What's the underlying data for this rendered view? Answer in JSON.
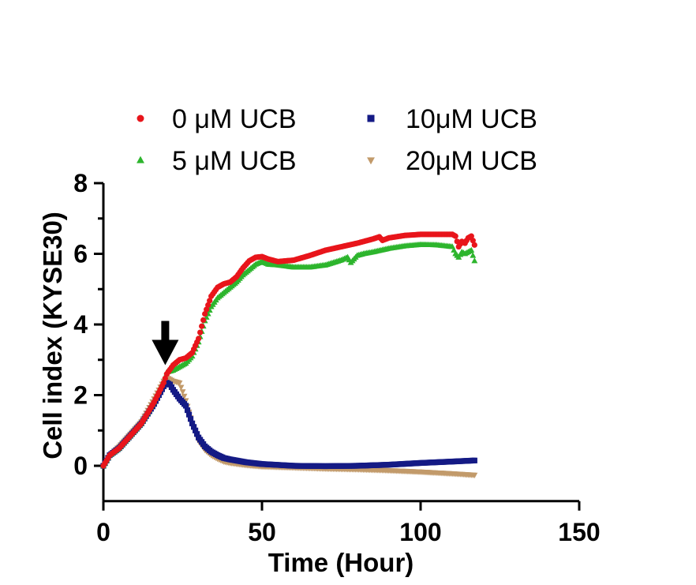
{
  "chart_data": {
    "type": "scatter",
    "title": "",
    "xlabel": "Time (Hour)",
    "ylabel": "Cell index (KYSE30)",
    "xlim": [
      0,
      150
    ],
    "ylim": [
      -1,
      8
    ],
    "x_ticks": [
      0,
      50,
      100,
      150
    ],
    "y_ticks": [
      0,
      2,
      4,
      6,
      8
    ],
    "grid": false,
    "legend_position": "top",
    "annotation": {
      "type": "arrow",
      "x": 19.5,
      "y_tip": 2.85,
      "y_tail": 4.1
    },
    "series": [
      {
        "name": "0 μM UCB",
        "color": "#e8151b",
        "marker": "circle",
        "x": [
          0,
          2,
          5,
          8,
          12,
          16,
          19,
          20,
          22,
          24,
          26,
          28,
          30,
          32,
          34,
          36,
          38,
          40,
          42,
          44,
          46,
          48,
          50,
          52,
          55,
          60,
          65,
          70,
          75,
          80,
          85,
          87,
          88,
          90,
          95,
          100,
          105,
          110,
          111,
          112,
          113,
          114,
          115,
          116,
          117
        ],
        "y": [
          0,
          0.3,
          0.5,
          0.8,
          1.2,
          1.8,
          2.35,
          2.6,
          2.85,
          3.0,
          3.05,
          3.2,
          3.6,
          4.3,
          4.8,
          5.05,
          5.15,
          5.2,
          5.35,
          5.6,
          5.8,
          5.9,
          5.92,
          5.85,
          5.78,
          5.82,
          5.95,
          6.1,
          6.2,
          6.3,
          6.42,
          6.48,
          6.38,
          6.45,
          6.52,
          6.55,
          6.55,
          6.55,
          6.5,
          6.2,
          6.35,
          6.3,
          6.45,
          6.5,
          6.25
        ]
      },
      {
        "name": "5 μM UCB",
        "color": "#2db52d",
        "marker": "triangle-up",
        "x": [
          0,
          2,
          5,
          8,
          12,
          16,
          19,
          20,
          22,
          24,
          26,
          28,
          30,
          32,
          34,
          36,
          38,
          40,
          42,
          44,
          46,
          48,
          50,
          52,
          55,
          60,
          65,
          70,
          75,
          77,
          78,
          80,
          82,
          85,
          90,
          95,
          100,
          105,
          110,
          111,
          112,
          113,
          114,
          115,
          116,
          117
        ],
        "y": [
          0,
          0.3,
          0.5,
          0.8,
          1.2,
          1.8,
          2.4,
          2.65,
          2.7,
          2.8,
          2.9,
          3.1,
          3.5,
          4.1,
          4.5,
          4.75,
          4.9,
          5.05,
          5.2,
          5.4,
          5.55,
          5.7,
          5.78,
          5.7,
          5.68,
          5.62,
          5.62,
          5.68,
          5.82,
          5.9,
          5.75,
          5.95,
          6.0,
          6.05,
          6.15,
          6.22,
          6.26,
          6.25,
          6.2,
          6.0,
          5.9,
          6.05,
          6.0,
          6.05,
          6.1,
          5.8
        ]
      },
      {
        "name": "10μM UCB",
        "color": "#141a85",
        "marker": "square",
        "x": [
          0,
          2,
          5,
          8,
          12,
          16,
          19,
          20,
          21,
          22,
          24,
          26,
          28,
          30,
          32,
          34,
          36,
          38,
          40,
          45,
          50,
          60,
          70,
          80,
          90,
          100,
          110,
          117
        ],
        "y": [
          0,
          0.3,
          0.5,
          0.8,
          1.2,
          1.75,
          2.25,
          2.35,
          2.3,
          2.15,
          1.9,
          1.7,
          1.2,
          0.8,
          0.55,
          0.4,
          0.3,
          0.22,
          0.18,
          0.1,
          0.05,
          0.0,
          -0.01,
          0.0,
          0.03,
          0.08,
          0.12,
          0.15
        ]
      },
      {
        "name": "20μM UCB",
        "color": "#c29a6a",
        "marker": "triangle-down",
        "x": [
          0,
          2,
          5,
          8,
          12,
          16,
          19,
          20,
          21,
          22,
          24,
          26,
          28,
          30,
          32,
          34,
          36,
          38,
          40,
          45,
          50,
          60,
          70,
          80,
          90,
          100,
          110,
          117
        ],
        "y": [
          0,
          0.3,
          0.55,
          0.85,
          1.25,
          1.9,
          2.4,
          2.5,
          2.45,
          2.4,
          2.35,
          1.85,
          1.2,
          0.7,
          0.45,
          0.3,
          0.2,
          0.12,
          0.08,
          0.02,
          -0.02,
          -0.05,
          -0.08,
          -0.1,
          -0.13,
          -0.17,
          -0.22,
          -0.26
        ]
      }
    ]
  }
}
